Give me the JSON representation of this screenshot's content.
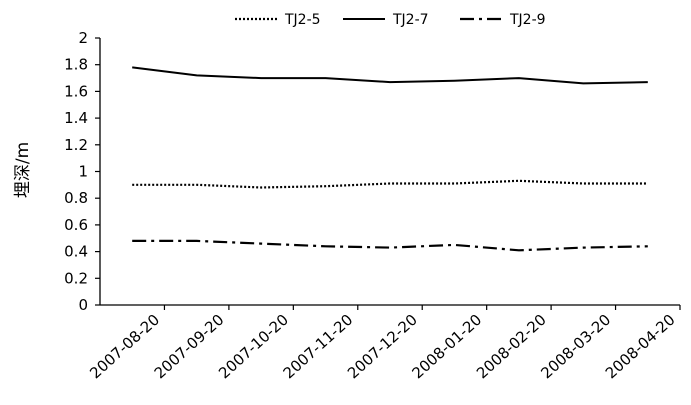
{
  "chart_data": {
    "type": "line",
    "title": "",
    "xlabel": "",
    "ylabel": "埋深/m",
    "ylim": [
      0,
      2
    ],
    "yticks": [
      "0",
      "0.2",
      "0.4",
      "0.6",
      "0.8",
      "1",
      "1.2",
      "1.4",
      "1.6",
      "1.8",
      "2"
    ],
    "grid": false,
    "legend_position": "top",
    "categories": [
      "2007-08-20",
      "2007-09-20",
      "2007-10-20",
      "2007-11-20",
      "2007-12-20",
      "2008-01-20",
      "2008-02-20",
      "2008-03-20",
      "2008-04-20"
    ],
    "series": [
      {
        "name": "TJ2-5",
        "style": "dotted",
        "color": "#000000",
        "values": [
          0.9,
          0.9,
          0.88,
          0.89,
          0.91,
          0.91,
          0.93,
          0.91,
          0.91
        ]
      },
      {
        "name": "TJ2-7",
        "style": "solid",
        "color": "#000000",
        "values": [
          1.78,
          1.72,
          1.7,
          1.7,
          1.67,
          1.68,
          1.7,
          1.66,
          1.67
        ]
      },
      {
        "name": "TJ2-9",
        "style": "dash-dot",
        "color": "#000000",
        "values": [
          0.48,
          0.48,
          0.46,
          0.44,
          0.43,
          0.45,
          0.41,
          0.43,
          0.44
        ]
      }
    ]
  }
}
